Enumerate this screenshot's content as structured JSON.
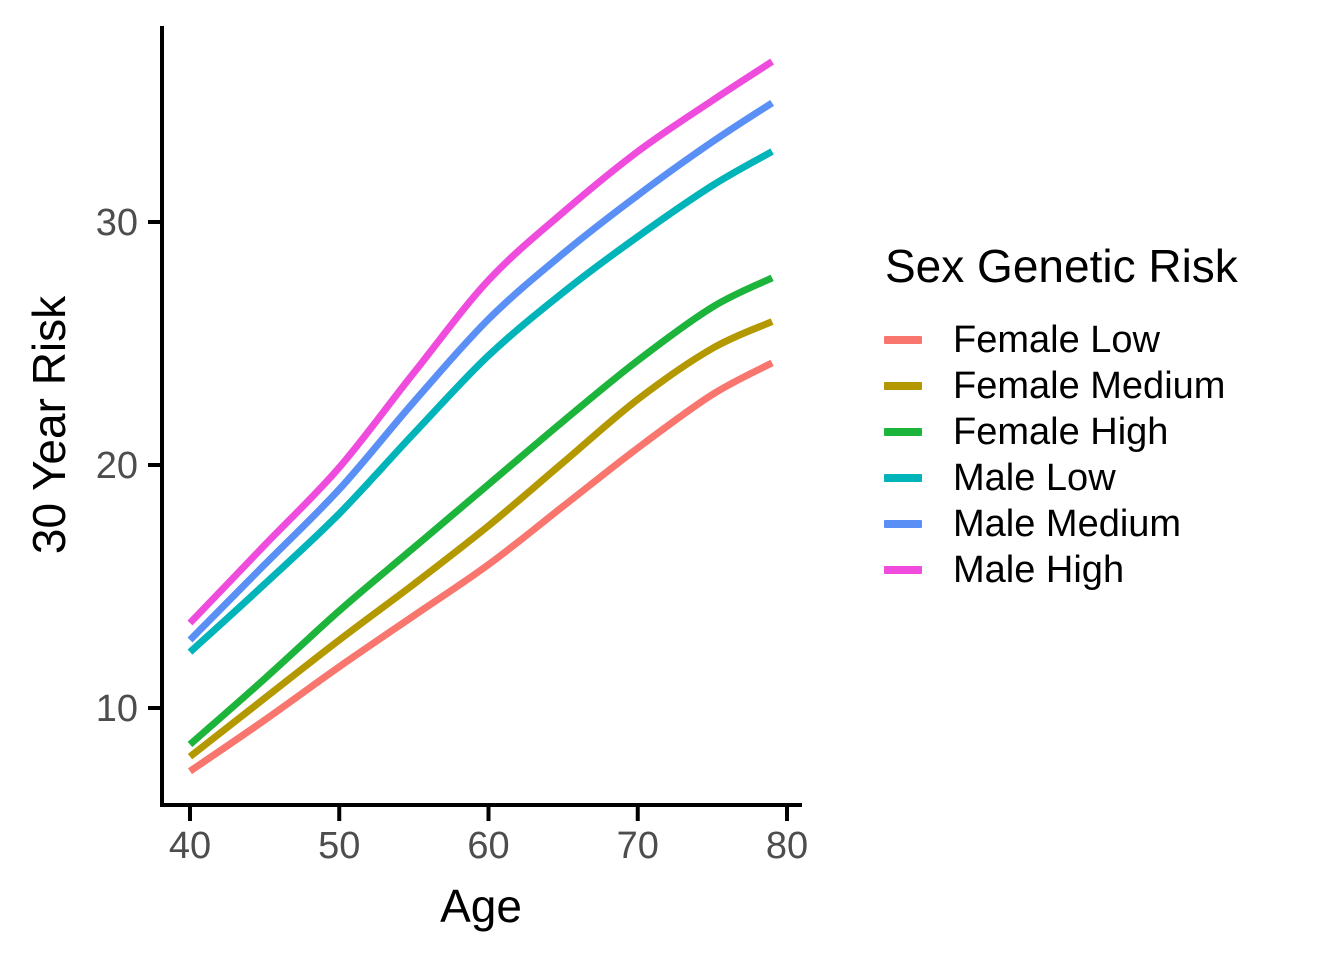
{
  "figure": {
    "background": "#FFFFFF",
    "axis_color": "#000000",
    "tick_label_color": "#4D4D4D"
  },
  "chart_data": {
    "type": "line",
    "title": "",
    "xlabel": "Age",
    "ylabel": "30 Year Risk",
    "legend_title": "Sex Genetic Risk",
    "legend_position": "right",
    "grid": false,
    "x_ticks": [
      40,
      50,
      60,
      70,
      80
    ],
    "y_ticks": [
      10,
      20,
      30
    ],
    "xlim": [
      38,
      81
    ],
    "ylim": [
      5.9,
      38.2
    ],
    "x": [
      40,
      45,
      50,
      55,
      60,
      65,
      70,
      75,
      79
    ],
    "series": [
      {
        "name": "Female Low",
        "color": "#F8766D",
        "values": [
          7.4,
          9.5,
          11.7,
          13.8,
          15.9,
          18.3,
          20.7,
          22.9,
          24.2
        ]
      },
      {
        "name": "Female Medium",
        "color": "#B39800",
        "values": [
          8.0,
          10.4,
          12.8,
          15.1,
          17.5,
          20.1,
          22.7,
          24.8,
          25.9
        ]
      },
      {
        "name": "Female High",
        "color": "#1CB43B",
        "values": [
          8.5,
          11.2,
          14.0,
          16.6,
          19.2,
          21.8,
          24.3,
          26.5,
          27.7
        ]
      },
      {
        "name": "Male Low",
        "color": "#00B4BA",
        "values": [
          12.3,
          15.1,
          18.0,
          21.3,
          24.5,
          27.1,
          29.4,
          31.5,
          32.9
        ]
      },
      {
        "name": "Male Medium",
        "color": "#5A90F5",
        "values": [
          12.8,
          15.9,
          19.0,
          22.6,
          26.0,
          28.7,
          31.1,
          33.3,
          34.9
        ]
      },
      {
        "name": "Male High",
        "color": "#EF4CDE",
        "values": [
          13.5,
          16.7,
          19.9,
          23.8,
          27.6,
          30.4,
          32.9,
          35.0,
          36.6
        ]
      }
    ]
  }
}
